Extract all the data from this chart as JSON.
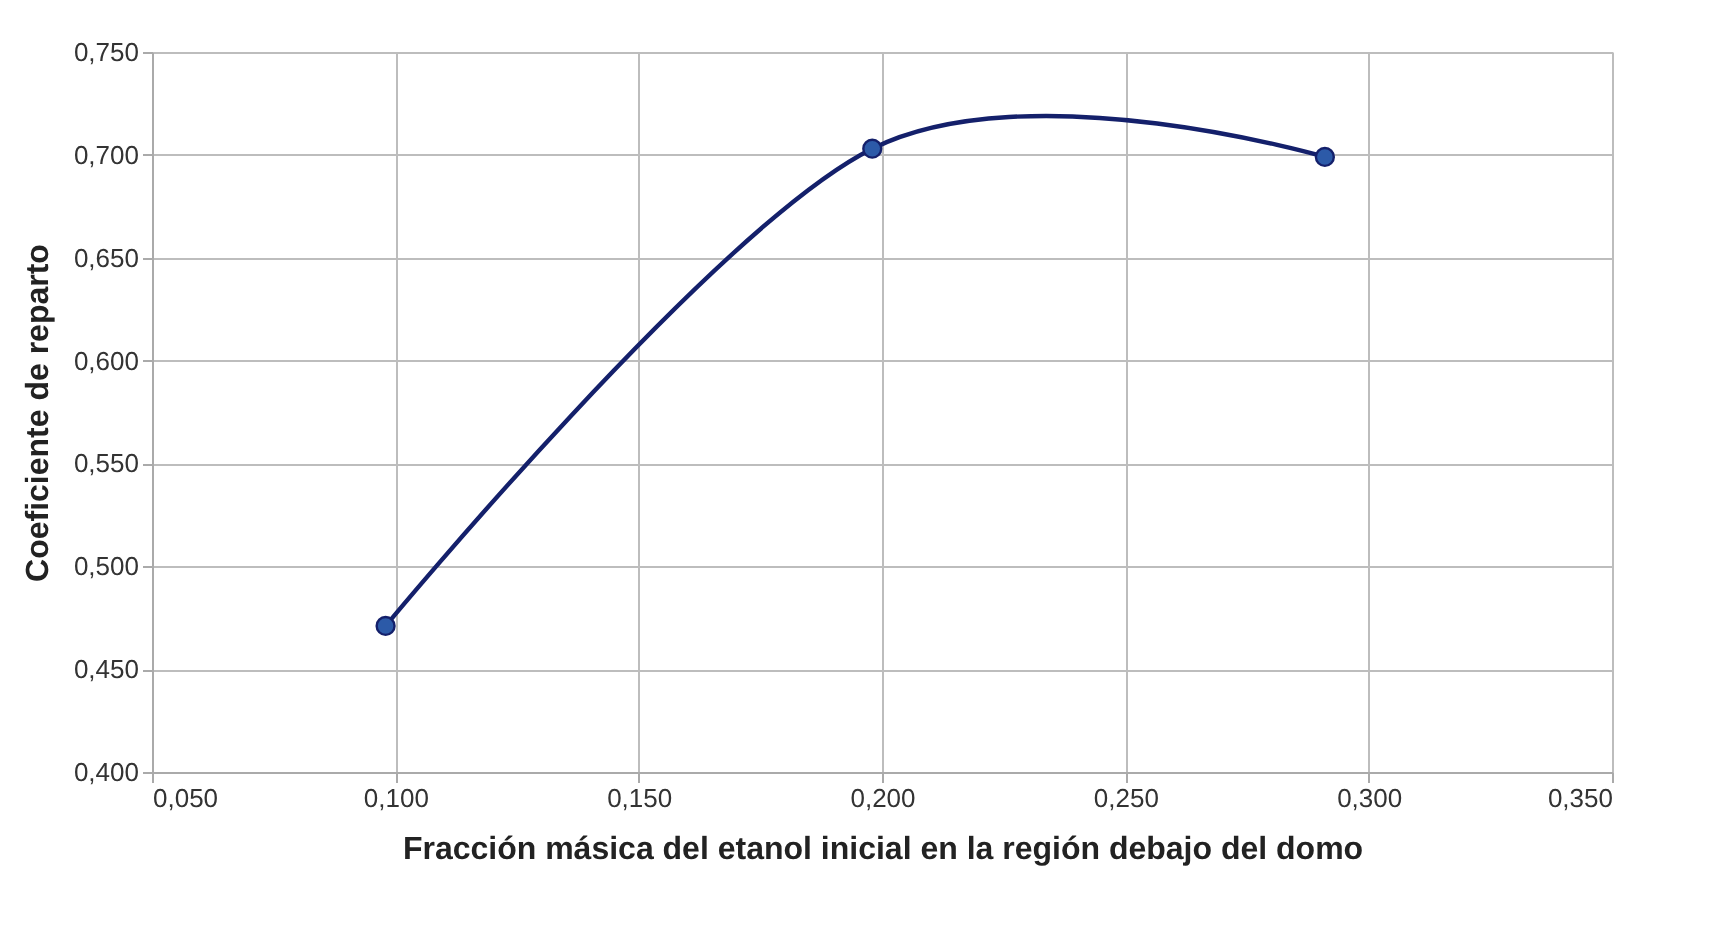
{
  "chart_data": {
    "type": "line",
    "xlabel": "Fracción másica del etanol inicial  en la región debajo del domo",
    "ylabel": "Coeficiente de reparto",
    "x": [
      0.098,
      0.198,
      0.291
    ],
    "series": [
      {
        "color": "#14206b",
        "values": [
          0.471,
          0.703,
          0.699
        ]
      }
    ],
    "xlim": [
      0.05,
      0.35
    ],
    "xticks": [
      {
        "value": 0.05,
        "label": "0,050"
      },
      {
        "value": 0.1,
        "label": "0,100"
      },
      {
        "value": 0.15,
        "label": "0,150"
      },
      {
        "value": 0.2,
        "label": "0,200"
      },
      {
        "value": 0.25,
        "label": "0,250"
      },
      {
        "value": 0.3,
        "label": "0,300"
      },
      {
        "value": 0.35,
        "label": "0,350"
      }
    ],
    "ylim": [
      0.4,
      0.75
    ],
    "yticks": [
      {
        "value": 0.4,
        "label": "0,400"
      },
      {
        "value": 0.45,
        "label": "0,450"
      },
      {
        "value": 0.5,
        "label": "0,500"
      },
      {
        "value": 0.55,
        "label": "0,550"
      },
      {
        "value": 0.6,
        "label": "0,600"
      },
      {
        "value": 0.65,
        "label": "0,650"
      },
      {
        "value": 0.7,
        "label": "0,700"
      },
      {
        "value": 0.75,
        "label": "0,750"
      }
    ],
    "grid": true,
    "marker": "circle",
    "line_style": "solid"
  }
}
